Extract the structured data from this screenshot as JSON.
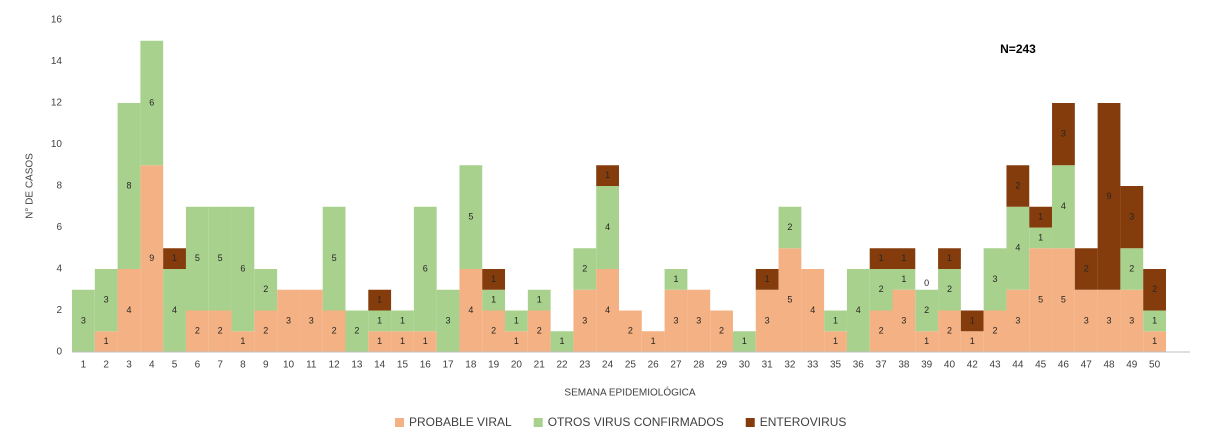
{
  "chart_data": {
    "type": "stacked-bar",
    "y_label": "N° DE CASOS",
    "x_label": "SEMANA EPIDEMIOLÓGICA",
    "annotation": "N=243",
    "categories": [
      "1",
      "2",
      "3",
      "4",
      "5",
      "6",
      "7",
      "8",
      "9",
      "10",
      "11",
      "12",
      "13",
      "14",
      "15",
      "16",
      "17",
      "18",
      "19",
      "20",
      "21",
      "22",
      "23",
      "24",
      "25",
      "26",
      "27",
      "28",
      "29",
      "30",
      "31",
      "32",
      "33",
      "35",
      "36",
      "37",
      "38",
      "39",
      "40",
      "42",
      "43",
      "44",
      "45",
      "46",
      "47",
      "48",
      "49",
      "50"
    ],
    "series": [
      {
        "name": "PROBABLE VIRAL",
        "color": "#f4b183",
        "values": [
          null,
          1,
          4,
          9,
          null,
          2,
          2,
          1,
          2,
          3,
          3,
          2,
          null,
          1,
          1,
          1,
          null,
          4,
          2,
          1,
          2,
          null,
          3,
          4,
          2,
          1,
          3,
          3,
          2,
          null,
          3,
          5,
          4,
          1,
          null,
          2,
          3,
          1,
          2,
          1,
          2,
          3,
          5,
          5,
          3,
          3,
          3,
          1
        ]
      },
      {
        "name": "OTROS VIRUS CONFIRMADOS",
        "color": "#a9d18e",
        "values": [
          3,
          3,
          8,
          6,
          4,
          5,
          5,
          6,
          2,
          null,
          null,
          5,
          2,
          1,
          1,
          6,
          3,
          5,
          1,
          1,
          1,
          1,
          2,
          4,
          null,
          null,
          1,
          null,
          null,
          1,
          null,
          2,
          null,
          1,
          4,
          2,
          1,
          2,
          2,
          null,
          3,
          4,
          1,
          4,
          null,
          null,
          2,
          1
        ]
      },
      {
        "name": "ENTEROVIRUS",
        "color": "#843c0c",
        "values": [
          null,
          null,
          null,
          null,
          1,
          null,
          null,
          null,
          null,
          null,
          null,
          null,
          null,
          1,
          null,
          null,
          null,
          null,
          1,
          null,
          null,
          null,
          null,
          1,
          null,
          null,
          null,
          null,
          null,
          null,
          1,
          null,
          null,
          null,
          null,
          1,
          1,
          0,
          1,
          1,
          null,
          2,
          1,
          3,
          2,
          9,
          3,
          2
        ]
      }
    ],
    "ylim": [
      0,
      16
    ],
    "yticks": [
      0,
      2,
      4,
      6,
      8,
      10,
      12,
      14,
      16
    ],
    "grid": false,
    "legend": "bottom"
  }
}
